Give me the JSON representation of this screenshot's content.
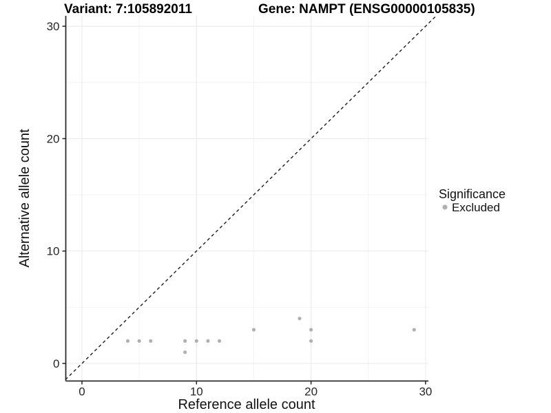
{
  "titles": {
    "variant": "Variant: 7:105892011",
    "gene": "Gene: NAMPT (ENSG00000105835)"
  },
  "chart_data": {
    "type": "scatter",
    "title_left": "Variant: 7:105892011",
    "title_right": "Gene: NAMPT (ENSG00000105835)",
    "xlabel": "Reference allele count",
    "ylabel": "Alternative allele count",
    "xlim": [
      -1.5,
      30.5
    ],
    "ylim": [
      -1.5,
      31
    ],
    "xticks": [
      0,
      10,
      20,
      30
    ],
    "yticks": [
      0,
      10,
      20,
      30
    ],
    "xticks_minor": [
      5,
      15,
      25
    ],
    "yticks_minor": [
      5,
      15,
      25
    ],
    "grid": "on",
    "series": [
      {
        "name": "Excluded",
        "color": "#b0b0b0",
        "points": [
          [
            4,
            2
          ],
          [
            5,
            2
          ],
          [
            6,
            2
          ],
          [
            9,
            1
          ],
          [
            9,
            2
          ],
          [
            10,
            2
          ],
          [
            11,
            2
          ],
          [
            12,
            2
          ],
          [
            15,
            3
          ],
          [
            19,
            4
          ],
          [
            20,
            2
          ],
          [
            20,
            3
          ],
          [
            29,
            3
          ]
        ]
      }
    ],
    "reference_line": {
      "type": "identity y=x",
      "style": "dashed",
      "color": "#1a1a1a"
    },
    "legend": {
      "position": "right",
      "title": "Significance",
      "items": [
        {
          "label": "Excluded",
          "color": "#b0b0b0"
        }
      ]
    },
    "colors": {
      "grid_major": "#e8e8e8",
      "grid_minor": "#f3f3f3",
      "axis_line": "#2b2b2b",
      "tick_mark": "#222222"
    }
  }
}
